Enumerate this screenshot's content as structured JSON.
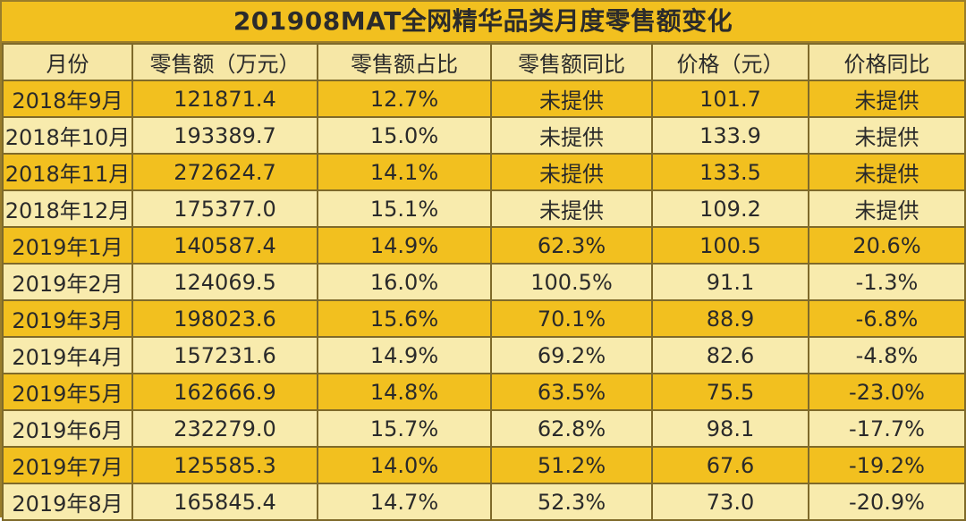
{
  "title": "201908MAT全网精华品类月度零售额变化",
  "colors": {
    "highlight_row": "#f2c01f",
    "light_row": "#f8ebad",
    "border": "#7f6a2a"
  },
  "chart_data": {
    "type": "table",
    "title": "201908MAT全网精华品类月度零售额变化",
    "columns": [
      "月份",
      "零售额（万元）",
      "零售额占比",
      "零售额同比",
      "价格（元）",
      "价格同比"
    ],
    "rows": [
      [
        "2018年9月",
        "121871.4",
        "12.7%",
        "未提供",
        "101.7",
        "未提供"
      ],
      [
        "2018年10月",
        "193389.7",
        "15.0%",
        "未提供",
        "133.9",
        "未提供"
      ],
      [
        "2018年11月",
        "272624.7",
        "14.1%",
        "未提供",
        "133.5",
        "未提供"
      ],
      [
        "2018年12月",
        "175377.0",
        "15.1%",
        "未提供",
        "109.2",
        "未提供"
      ],
      [
        "2019年1月",
        "140587.4",
        "14.9%",
        "62.3%",
        "100.5",
        "20.6%"
      ],
      [
        "2019年2月",
        "124069.5",
        "16.0%",
        "100.5%",
        "91.1",
        "-1.3%"
      ],
      [
        "2019年3月",
        "198023.6",
        "15.6%",
        "70.1%",
        "88.9",
        "-6.8%"
      ],
      [
        "2019年4月",
        "157231.6",
        "14.9%",
        "69.2%",
        "82.6",
        "-4.8%"
      ],
      [
        "2019年5月",
        "162666.9",
        "14.8%",
        "63.5%",
        "75.5",
        "-23.0%"
      ],
      [
        "2019年6月",
        "232279.0",
        "15.7%",
        "62.8%",
        "98.1",
        "-17.7%"
      ],
      [
        "2019年7月",
        "125585.3",
        "14.0%",
        "51.2%",
        "67.6",
        "-19.2%"
      ],
      [
        "2019年8月",
        "165845.4",
        "14.7%",
        "52.3%",
        "73.0",
        "-20.9%"
      ]
    ]
  }
}
